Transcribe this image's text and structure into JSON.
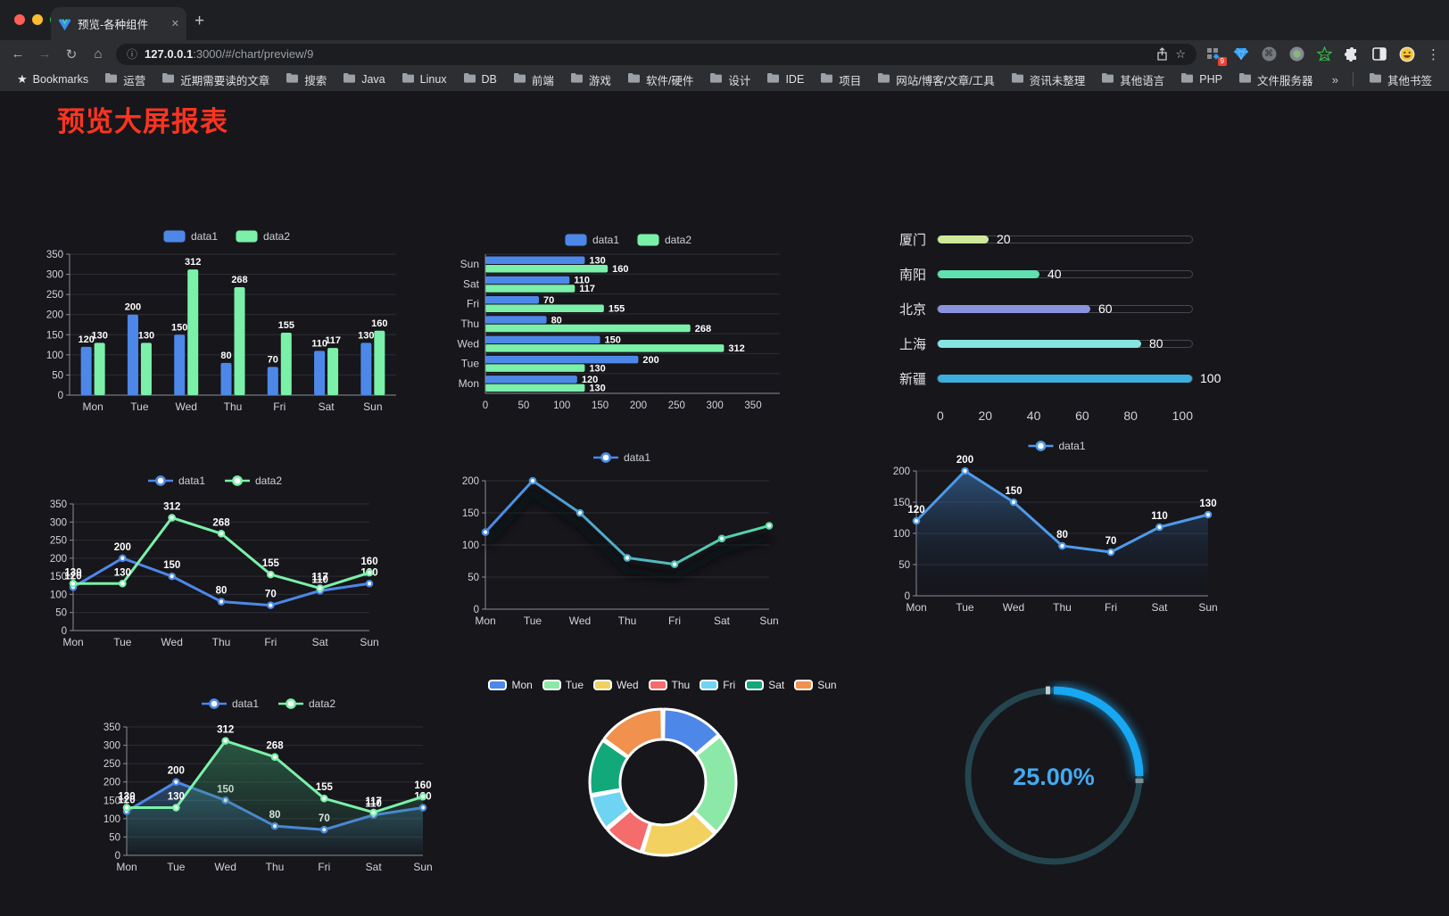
{
  "browser": {
    "tab": {
      "title": "预览-各种组件",
      "close_icon": "✕",
      "new_tab_icon": "+"
    },
    "nav": {
      "back_icon": "←",
      "forward_icon": "→",
      "reload_icon": "↻",
      "home_icon": "⌂"
    },
    "url": {
      "info_icon": "ⓘ",
      "host": "127.0.0.1",
      "rest": ":3000/#/chart/preview/9",
      "star_icon": "☆"
    },
    "extensions": {
      "badge": "9",
      "command_icon": "⌘",
      "menu_icon": "⋮"
    },
    "bookmarks_bar": {
      "star_icon": "★",
      "bookmarks_label": "Bookmarks",
      "folders": [
        "运营",
        "近期需要读的文章",
        "搜索",
        "Java",
        "Linux",
        "DB",
        "前端",
        "游戏",
        "软件/硬件",
        "设计",
        "IDE",
        "项目",
        "网站/博客/文章/工具",
        "资讯未整理",
        "其他语言",
        "PHP",
        "文件服务器"
      ],
      "overflow_icon": "»",
      "other_bookmarks": "其他书签"
    }
  },
  "page": {
    "title": "预览大屏报表",
    "title_color": "#fb3420"
  },
  "chart_data": [
    {
      "id": "bar-vertical",
      "type": "bar",
      "categories": [
        "Mon",
        "Tue",
        "Wed",
        "Thu",
        "Fri",
        "Sat",
        "Sun"
      ],
      "series": [
        {
          "name": "data1",
          "color": "#4d88e8",
          "values": [
            120,
            200,
            150,
            80,
            70,
            110,
            130
          ]
        },
        {
          "name": "data2",
          "color": "#7bf0a8",
          "values": [
            130,
            130,
            312,
            268,
            155,
            117,
            160
          ]
        }
      ],
      "ylim": [
        0,
        350
      ],
      "ytick_step": 50,
      "legend_position": "top",
      "grid": true
    },
    {
      "id": "bar-horizontal",
      "type": "bar",
      "orientation": "horizontal",
      "categories_top_to_bottom": [
        "Sun",
        "Sat",
        "Fri",
        "Thu",
        "Wed",
        "Tue",
        "Mon"
      ],
      "series": [
        {
          "name": "data1",
          "color": "#4d88e8",
          "values_top_to_bottom": [
            130,
            110,
            70,
            80,
            150,
            200,
            120
          ]
        },
        {
          "name": "data2",
          "color": "#7bf0a8",
          "values_top_to_bottom": [
            160,
            117,
            155,
            268,
            312,
            130,
            130
          ]
        }
      ],
      "xlim": [
        0,
        350
      ],
      "xtick_step": 50,
      "legend_position": "top"
    },
    {
      "id": "progress-bars",
      "type": "bar",
      "subtype": "progress",
      "max": 100,
      "xticks": [
        0,
        20,
        40,
        60,
        80,
        100
      ],
      "rows": [
        {
          "label": "厦门",
          "value": 20,
          "color": "#cfe89c"
        },
        {
          "label": "南阳",
          "value": 40,
          "color": "#5fe0b0"
        },
        {
          "label": "北京",
          "value": 60,
          "color": "#8a93e0"
        },
        {
          "label": "上海",
          "value": 80,
          "color": "#86e5e1"
        },
        {
          "label": "新疆",
          "value": 100,
          "color": "#3baede"
        }
      ]
    },
    {
      "id": "line-dual",
      "type": "line",
      "categories": [
        "Mon",
        "Tue",
        "Wed",
        "Thu",
        "Fri",
        "Sat",
        "Sun"
      ],
      "series": [
        {
          "name": "data1",
          "color": "#4d88e8",
          "values": [
            120,
            200,
            150,
            80,
            70,
            110,
            130
          ]
        },
        {
          "name": "data2",
          "color": "#7bf0a8",
          "values": [
            130,
            130,
            312,
            268,
            155,
            117,
            160
          ]
        }
      ],
      "ylim": [
        0,
        350
      ],
      "ytick_step": 50,
      "show_labels": true
    },
    {
      "id": "line-gradient",
      "type": "line",
      "categories": [
        "Mon",
        "Tue",
        "Wed",
        "Thu",
        "Fri",
        "Sat",
        "Sun"
      ],
      "series": [
        {
          "name": "data1",
          "color_start": "#4a89e8",
          "color_end": "#55dca2",
          "values": [
            120,
            200,
            150,
            80,
            70,
            110,
            130
          ]
        }
      ],
      "ylim": [
        0,
        200
      ],
      "ytick_step": 50,
      "show_labels": false
    },
    {
      "id": "area-single",
      "type": "area",
      "categories": [
        "Mon",
        "Tue",
        "Wed",
        "Thu",
        "Fri",
        "Sat",
        "Sun"
      ],
      "series": [
        {
          "name": "data1",
          "color": "#4f9ae8",
          "values": [
            120,
            200,
            150,
            80,
            70,
            110,
            130
          ]
        }
      ],
      "ylim": [
        0,
        200
      ],
      "ytick_step": 50,
      "show_labels": true
    },
    {
      "id": "area-dual",
      "type": "area",
      "categories": [
        "Mon",
        "Tue",
        "Wed",
        "Thu",
        "Fri",
        "Sat",
        "Sun"
      ],
      "series": [
        {
          "name": "data1",
          "color": "#4d88e8",
          "values": [
            120,
            200,
            150,
            80,
            70,
            110,
            130
          ]
        },
        {
          "name": "data2",
          "color": "#7bf0a8",
          "values": [
            130,
            130,
            312,
            268,
            155,
            117,
            160
          ]
        }
      ],
      "ylim": [
        0,
        350
      ],
      "ytick_step": 50,
      "show_labels": true
    },
    {
      "id": "donut",
      "type": "pie",
      "labels": [
        "Mon",
        "Tue",
        "Wed",
        "Thu",
        "Fri",
        "Sat",
        "Sun"
      ],
      "values": [
        120,
        200,
        150,
        80,
        70,
        110,
        130
      ],
      "colors": [
        "#4d87e8",
        "#8ce8a6",
        "#f2d160",
        "#f56c6c",
        "#6fd3f2",
        "#12a87a",
        "#f0914d"
      ],
      "inner_radius": 48,
      "outer_radius": 82,
      "legend_position": "top"
    },
    {
      "id": "gauge",
      "type": "gauge",
      "value": 25,
      "display": "25.00%",
      "color": "#18a7f2",
      "track_color": "#24454e",
      "text_color": "#44a9f0"
    }
  ]
}
